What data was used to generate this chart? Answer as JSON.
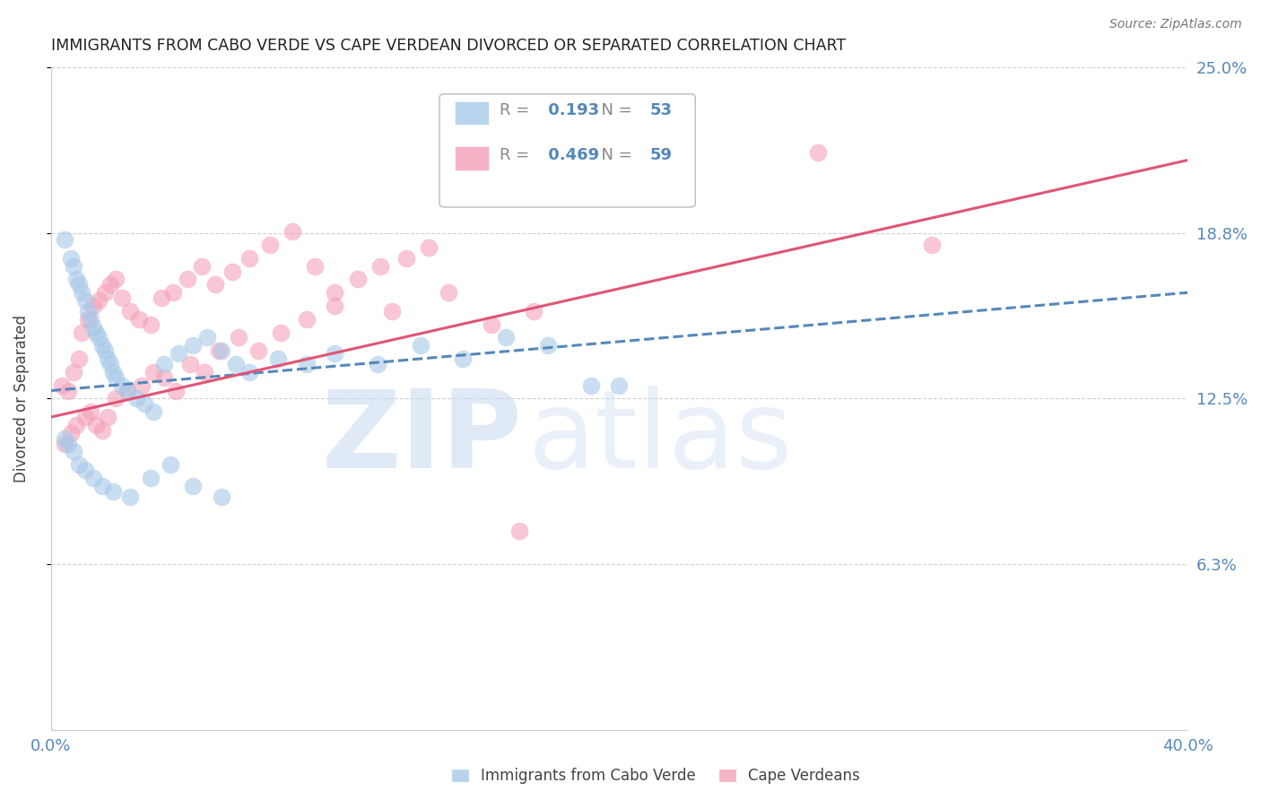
{
  "title": "IMMIGRANTS FROM CABO VERDE VS CAPE VERDEAN DIVORCED OR SEPARATED CORRELATION CHART",
  "source": "Source: ZipAtlas.com",
  "ylabel": "Divorced or Separated",
  "legend1_label": "Immigrants from Cabo Verde",
  "legend2_label": "Cape Verdeans",
  "r1": 0.193,
  "n1": 53,
  "r2": 0.469,
  "n2": 59,
  "color1": "#a8c8e8",
  "color2": "#f4a0b8",
  "trendline1_color": "#5588bb",
  "trendline2_color": "#e05575",
  "xmin": 0.0,
  "xmax": 0.4,
  "ymin": 0.0,
  "ymax": 0.25,
  "yticks": [
    0.0625,
    0.125,
    0.1875,
    0.25
  ],
  "ytick_labels": [
    "6.3%",
    "12.5%",
    "18.8%",
    "25.0%"
  ],
  "grid_color": "#cccccc",
  "background_color": "#ffffff",
  "watermark_zip": "ZIP",
  "watermark_atlas": "atlas",
  "blue_scatter_x": [
    0.005,
    0.007,
    0.008,
    0.009,
    0.01,
    0.011,
    0.012,
    0.013,
    0.014,
    0.015,
    0.016,
    0.017,
    0.018,
    0.019,
    0.02,
    0.021,
    0.022,
    0.023,
    0.025,
    0.027,
    0.03,
    0.033,
    0.036,
    0.04,
    0.045,
    0.05,
    0.055,
    0.06,
    0.065,
    0.07,
    0.08,
    0.09,
    0.1,
    0.115,
    0.13,
    0.145,
    0.16,
    0.175,
    0.19,
    0.005,
    0.006,
    0.008,
    0.01,
    0.012,
    0.015,
    0.018,
    0.022,
    0.028,
    0.035,
    0.042,
    0.05,
    0.06,
    0.2
  ],
  "blue_scatter_y": [
    0.185,
    0.178,
    0.175,
    0.17,
    0.168,
    0.165,
    0.162,
    0.158,
    0.155,
    0.152,
    0.15,
    0.148,
    0.145,
    0.143,
    0.14,
    0.138,
    0.135,
    0.133,
    0.13,
    0.128,
    0.125,
    0.123,
    0.12,
    0.138,
    0.142,
    0.145,
    0.148,
    0.143,
    0.138,
    0.135,
    0.14,
    0.138,
    0.142,
    0.138,
    0.145,
    0.14,
    0.148,
    0.145,
    0.13,
    0.11,
    0.108,
    0.105,
    0.1,
    0.098,
    0.095,
    0.092,
    0.09,
    0.088,
    0.095,
    0.1,
    0.092,
    0.088,
    0.13
  ],
  "pink_scatter_x": [
    0.004,
    0.006,
    0.008,
    0.01,
    0.011,
    0.013,
    0.015,
    0.017,
    0.019,
    0.021,
    0.023,
    0.025,
    0.028,
    0.031,
    0.035,
    0.039,
    0.043,
    0.048,
    0.053,
    0.058,
    0.064,
    0.07,
    0.077,
    0.085,
    0.093,
    0.1,
    0.108,
    0.116,
    0.125,
    0.133,
    0.005,
    0.007,
    0.009,
    0.012,
    0.014,
    0.016,
    0.018,
    0.02,
    0.023,
    0.027,
    0.032,
    0.036,
    0.04,
    0.044,
    0.049,
    0.054,
    0.059,
    0.066,
    0.073,
    0.081,
    0.09,
    0.1,
    0.12,
    0.14,
    0.155,
    0.17,
    0.27,
    0.31,
    0.165
  ],
  "pink_scatter_y": [
    0.13,
    0.128,
    0.135,
    0.14,
    0.15,
    0.155,
    0.16,
    0.162,
    0.165,
    0.168,
    0.17,
    0.163,
    0.158,
    0.155,
    0.153,
    0.163,
    0.165,
    0.17,
    0.175,
    0.168,
    0.173,
    0.178,
    0.183,
    0.188,
    0.175,
    0.165,
    0.17,
    0.175,
    0.178,
    0.182,
    0.108,
    0.112,
    0.115,
    0.118,
    0.12,
    0.115,
    0.113,
    0.118,
    0.125,
    0.128,
    0.13,
    0.135,
    0.133,
    0.128,
    0.138,
    0.135,
    0.143,
    0.148,
    0.143,
    0.15,
    0.155,
    0.16,
    0.158,
    0.165,
    0.153,
    0.158,
    0.218,
    0.183,
    0.075
  ],
  "trendline1_x": [
    0.0,
    0.4
  ],
  "trendline1_y": [
    0.128,
    0.165
  ],
  "trendline2_x": [
    0.0,
    0.4
  ],
  "trendline2_y": [
    0.118,
    0.215
  ]
}
